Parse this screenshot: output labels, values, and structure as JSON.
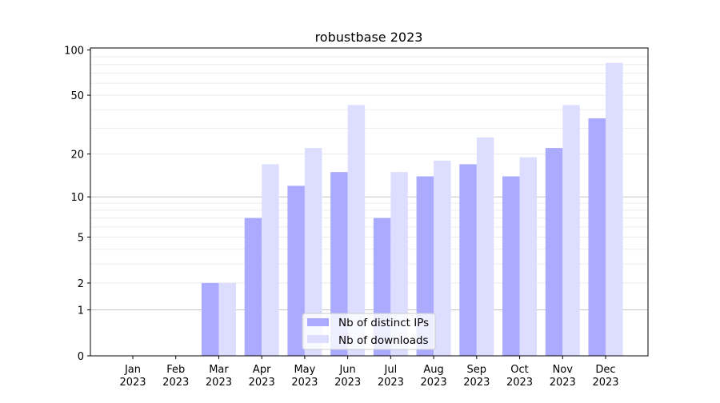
{
  "chart_data": {
    "type": "bar",
    "title": "robustbase 2023",
    "xlabel": "",
    "ylabel": "",
    "yscale": "symlog (log10(1+y))",
    "ylim": [
      0,
      103
    ],
    "yticks": [
      0,
      1,
      2,
      5,
      10,
      20,
      50,
      100
    ],
    "grid": true,
    "legend_position": "lower center",
    "categories": [
      "Jan\n2023",
      "Feb\n2023",
      "Mar\n2023",
      "Apr\n2023",
      "May\n2023",
      "Jun\n2023",
      "Jul\n2023",
      "Aug\n2023",
      "Sep\n2023",
      "Oct\n2023",
      "Nov\n2023",
      "Dec\n2023"
    ],
    "series": [
      {
        "name": "Nb of distinct IPs",
        "color": "#aaaaff",
        "values": [
          0,
          0,
          2,
          7,
          12,
          15,
          7,
          14,
          17,
          14,
          22,
          35
        ]
      },
      {
        "name": "Nb of downloads",
        "color": "#ddddff",
        "values": [
          0,
          0,
          2,
          17,
          22,
          43,
          15,
          18,
          26,
          19,
          43,
          82
        ]
      }
    ]
  }
}
